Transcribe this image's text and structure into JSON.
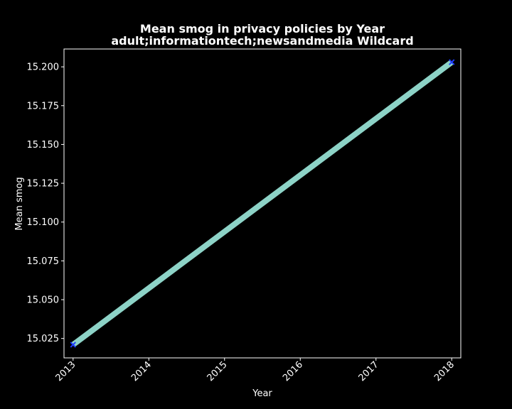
{
  "chart_data": {
    "type": "line",
    "title": "Mean smog in privacy policies by Year",
    "subtitle": "adult;informationtech;newsandmedia Wildcard",
    "xlabel": "Year",
    "ylabel": "Mean smog",
    "x": [
      2013,
      2018
    ],
    "series": [
      {
        "values": [
          15.021,
          15.203
        ]
      }
    ],
    "x_ticks": [
      "2013",
      "2014",
      "2015",
      "2016",
      "2017",
      "2018"
    ],
    "y_ticks": [
      "15.025",
      "15.050",
      "15.075",
      "15.100",
      "15.125",
      "15.150",
      "15.175",
      "15.200"
    ],
    "xlim": [
      2012.88,
      2018.12
    ],
    "ylim": [
      15.0125,
      15.2115
    ],
    "grid": false,
    "legend": "none",
    "colors": {
      "background": "#000000",
      "axes": "#ffffff",
      "line": "#8dd3c7",
      "marker": "#1f3cff"
    }
  }
}
